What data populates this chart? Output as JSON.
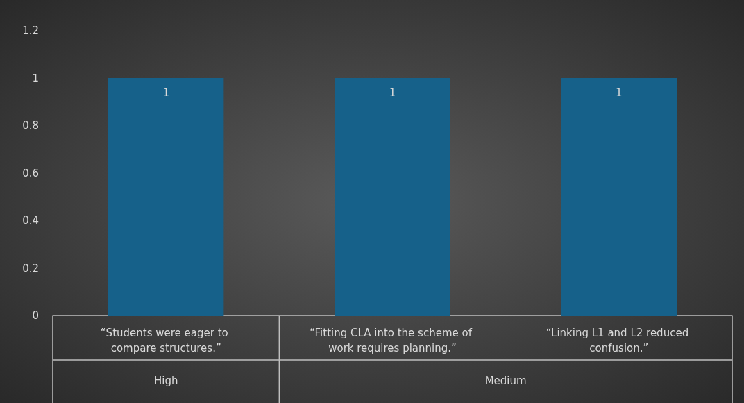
{
  "chart_data": {
    "type": "bar",
    "categories": [
      "“Students were eager to compare structures.”",
      "“Fitting CLA into the scheme of work requires planning.”",
      "“Linking L1 and L2 reduced confusion.”"
    ],
    "values": [
      1,
      1,
      1
    ],
    "color": "#16618a",
    "annotations": [
      "High",
      "Medium"
    ],
    "ylim": [
      0,
      1.2
    ],
    "yticks": [
      0,
      0.2,
      0.4,
      0.6,
      0.8,
      1,
      1.2
    ],
    "grid": "y",
    "data_labels": true
  }
}
